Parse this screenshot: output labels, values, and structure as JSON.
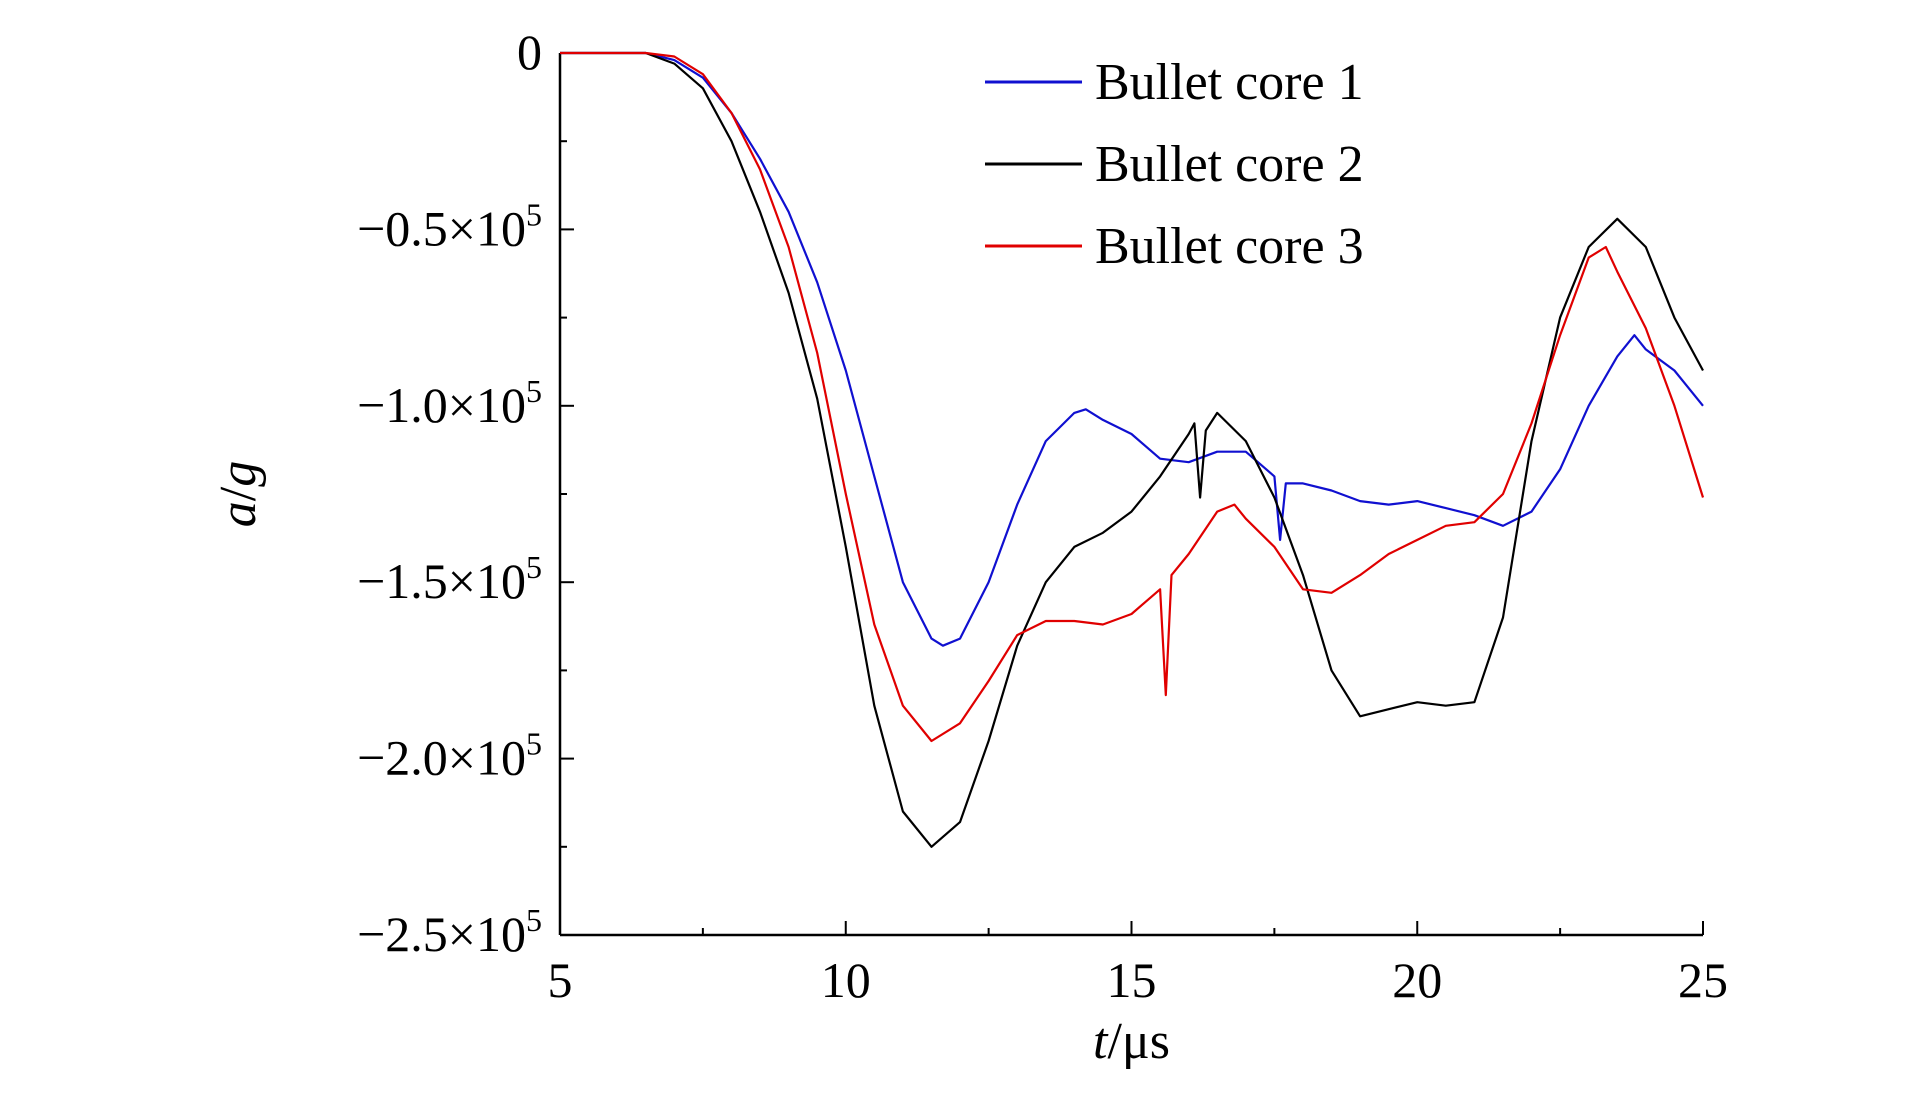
{
  "chart_data": {
    "type": "line",
    "xlabel": {
      "italic": "t",
      "unit": "/μs"
    },
    "ylabel": {
      "italic": "a",
      "rest": "/",
      "italic2": "g"
    },
    "xlim": [
      5,
      25
    ],
    "ylim": [
      -250000,
      0
    ],
    "x_ticks": [
      {
        "value": 5,
        "label": "5"
      },
      {
        "value": 10,
        "label": "10"
      },
      {
        "value": 15,
        "label": "15"
      },
      {
        "value": 20,
        "label": "20"
      },
      {
        "value": 25,
        "label": "25"
      }
    ],
    "y_ticks": [
      {
        "value": 0,
        "mantissa": "0",
        "exp": ""
      },
      {
        "value": -50000,
        "mantissa": "−0.5×10",
        "exp": "5"
      },
      {
        "value": -100000,
        "mantissa": "−1.0×10",
        "exp": "5"
      },
      {
        "value": -150000,
        "mantissa": "−1.5×10",
        "exp": "5"
      },
      {
        "value": -200000,
        "mantissa": "−2.0×10",
        "exp": "5"
      },
      {
        "value": -250000,
        "mantissa": "−2.5×10",
        "exp": "5"
      }
    ],
    "legend_position": "top-right",
    "grid": false,
    "series": [
      {
        "name": "Bullet core 1",
        "color": "#1010d0",
        "points": [
          [
            5.0,
            0
          ],
          [
            6.5,
            0
          ],
          [
            7.0,
            -2000
          ],
          [
            7.5,
            -7000
          ],
          [
            8.0,
            -17000
          ],
          [
            8.5,
            -30000
          ],
          [
            9.0,
            -45000
          ],
          [
            9.5,
            -65000
          ],
          [
            10.0,
            -90000
          ],
          [
            10.5,
            -120000
          ],
          [
            11.0,
            -150000
          ],
          [
            11.5,
            -166000
          ],
          [
            11.7,
            -168000
          ],
          [
            12.0,
            -166000
          ],
          [
            12.5,
            -150000
          ],
          [
            13.0,
            -128000
          ],
          [
            13.5,
            -110000
          ],
          [
            14.0,
            -102000
          ],
          [
            14.2,
            -101000
          ],
          [
            14.5,
            -104000
          ],
          [
            15.0,
            -108000
          ],
          [
            15.5,
            -115000
          ],
          [
            16.0,
            -116000
          ],
          [
            16.5,
            -113000
          ],
          [
            17.0,
            -113000
          ],
          [
            17.5,
            -120000
          ],
          [
            17.6,
            -138000
          ],
          [
            17.7,
            -122000
          ],
          [
            18.0,
            -122000
          ],
          [
            18.5,
            -124000
          ],
          [
            19.0,
            -127000
          ],
          [
            19.5,
            -128000
          ],
          [
            20.0,
            -127000
          ],
          [
            20.5,
            -129000
          ],
          [
            21.0,
            -131000
          ],
          [
            21.5,
            -134000
          ],
          [
            22.0,
            -130000
          ],
          [
            22.5,
            -118000
          ],
          [
            23.0,
            -100000
          ],
          [
            23.5,
            -86000
          ],
          [
            23.8,
            -80000
          ],
          [
            24.0,
            -84000
          ],
          [
            24.5,
            -90000
          ],
          [
            25.0,
            -100000
          ]
        ]
      },
      {
        "name": "Bullet core 2",
        "color": "#000000",
        "points": [
          [
            5.0,
            0
          ],
          [
            6.5,
            0
          ],
          [
            7.0,
            -3000
          ],
          [
            7.5,
            -10000
          ],
          [
            8.0,
            -25000
          ],
          [
            8.5,
            -45000
          ],
          [
            9.0,
            -68000
          ],
          [
            9.5,
            -98000
          ],
          [
            10.0,
            -140000
          ],
          [
            10.5,
            -185000
          ],
          [
            11.0,
            -215000
          ],
          [
            11.5,
            -225000
          ],
          [
            12.0,
            -218000
          ],
          [
            12.5,
            -195000
          ],
          [
            13.0,
            -168000
          ],
          [
            13.5,
            -150000
          ],
          [
            14.0,
            -140000
          ],
          [
            14.5,
            -136000
          ],
          [
            15.0,
            -130000
          ],
          [
            15.5,
            -120000
          ],
          [
            16.0,
            -108000
          ],
          [
            16.1,
            -105000
          ],
          [
            16.2,
            -126000
          ],
          [
            16.3,
            -107000
          ],
          [
            16.5,
            -102000
          ],
          [
            17.0,
            -110000
          ],
          [
            17.5,
            -126000
          ],
          [
            18.0,
            -148000
          ],
          [
            18.5,
            -175000
          ],
          [
            19.0,
            -188000
          ],
          [
            19.5,
            -186000
          ],
          [
            20.0,
            -184000
          ],
          [
            20.5,
            -185000
          ],
          [
            21.0,
            -184000
          ],
          [
            21.5,
            -160000
          ],
          [
            22.0,
            -110000
          ],
          [
            22.5,
            -75000
          ],
          [
            23.0,
            -55000
          ],
          [
            23.5,
            -47000
          ],
          [
            24.0,
            -55000
          ],
          [
            24.5,
            -75000
          ],
          [
            25.0,
            -90000
          ]
        ]
      },
      {
        "name": "Bullet core 3",
        "color": "#e00000",
        "points": [
          [
            5.0,
            0
          ],
          [
            6.5,
            0
          ],
          [
            7.0,
            -1000
          ],
          [
            7.5,
            -6000
          ],
          [
            8.0,
            -17000
          ],
          [
            8.5,
            -33000
          ],
          [
            9.0,
            -55000
          ],
          [
            9.5,
            -85000
          ],
          [
            10.0,
            -125000
          ],
          [
            10.5,
            -162000
          ],
          [
            11.0,
            -185000
          ],
          [
            11.5,
            -195000
          ],
          [
            12.0,
            -190000
          ],
          [
            12.5,
            -178000
          ],
          [
            13.0,
            -165000
          ],
          [
            13.5,
            -161000
          ],
          [
            14.0,
            -161000
          ],
          [
            14.5,
            -162000
          ],
          [
            15.0,
            -159000
          ],
          [
            15.5,
            -152000
          ],
          [
            15.6,
            -182000
          ],
          [
            15.7,
            -148000
          ],
          [
            16.0,
            -142000
          ],
          [
            16.5,
            -130000
          ],
          [
            16.8,
            -128000
          ],
          [
            17.0,
            -132000
          ],
          [
            17.5,
            -140000
          ],
          [
            18.0,
            -152000
          ],
          [
            18.5,
            -153000
          ],
          [
            19.0,
            -148000
          ],
          [
            19.5,
            -142000
          ],
          [
            20.0,
            -138000
          ],
          [
            20.5,
            -134000
          ],
          [
            21.0,
            -133000
          ],
          [
            21.5,
            -125000
          ],
          [
            22.0,
            -105000
          ],
          [
            22.5,
            -80000
          ],
          [
            23.0,
            -58000
          ],
          [
            23.3,
            -55000
          ],
          [
            23.5,
            -62000
          ],
          [
            24.0,
            -78000
          ],
          [
            24.5,
            -100000
          ],
          [
            25.0,
            -126000
          ]
        ]
      }
    ]
  }
}
